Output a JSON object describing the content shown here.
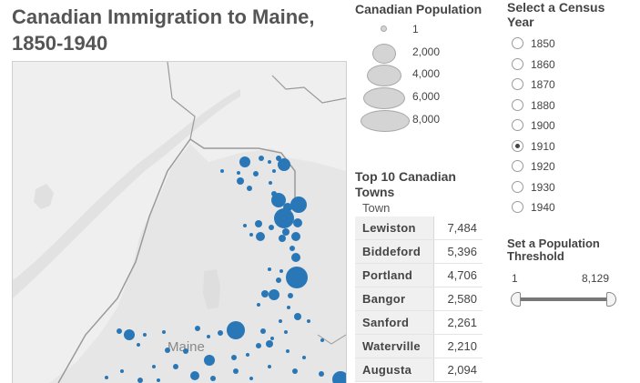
{
  "title": "Canadian Immigration to Maine, 1850-1940",
  "map": {
    "place_label": "Maine",
    "marker_color": "#2a77b8"
  },
  "size_legend": {
    "title": "Canadian Population",
    "items": [
      "1",
      "2,000",
      "4,000",
      "6,000",
      "8,000"
    ]
  },
  "top10": {
    "title": "Top 10 Canadian Towns",
    "column_header": "Town",
    "rows": [
      {
        "town": "Lewiston",
        "value": "7,484"
      },
      {
        "town": "Biddeford",
        "value": "5,396"
      },
      {
        "town": "Portland",
        "value": "4,706"
      },
      {
        "town": "Bangor",
        "value": "2,580"
      },
      {
        "town": "Sanford",
        "value": "2,261"
      },
      {
        "town": "Waterville",
        "value": "2,210"
      },
      {
        "town": "Augusta",
        "value": "2,094"
      }
    ]
  },
  "census": {
    "title": "Select a Census Year",
    "years": [
      "1850",
      "1860",
      "1870",
      "1880",
      "1900",
      "1910",
      "1920",
      "1930",
      "1940"
    ],
    "selected": "1910"
  },
  "threshold": {
    "title": "Set a Population Threshold",
    "min": "1",
    "max": "8,129"
  }
}
